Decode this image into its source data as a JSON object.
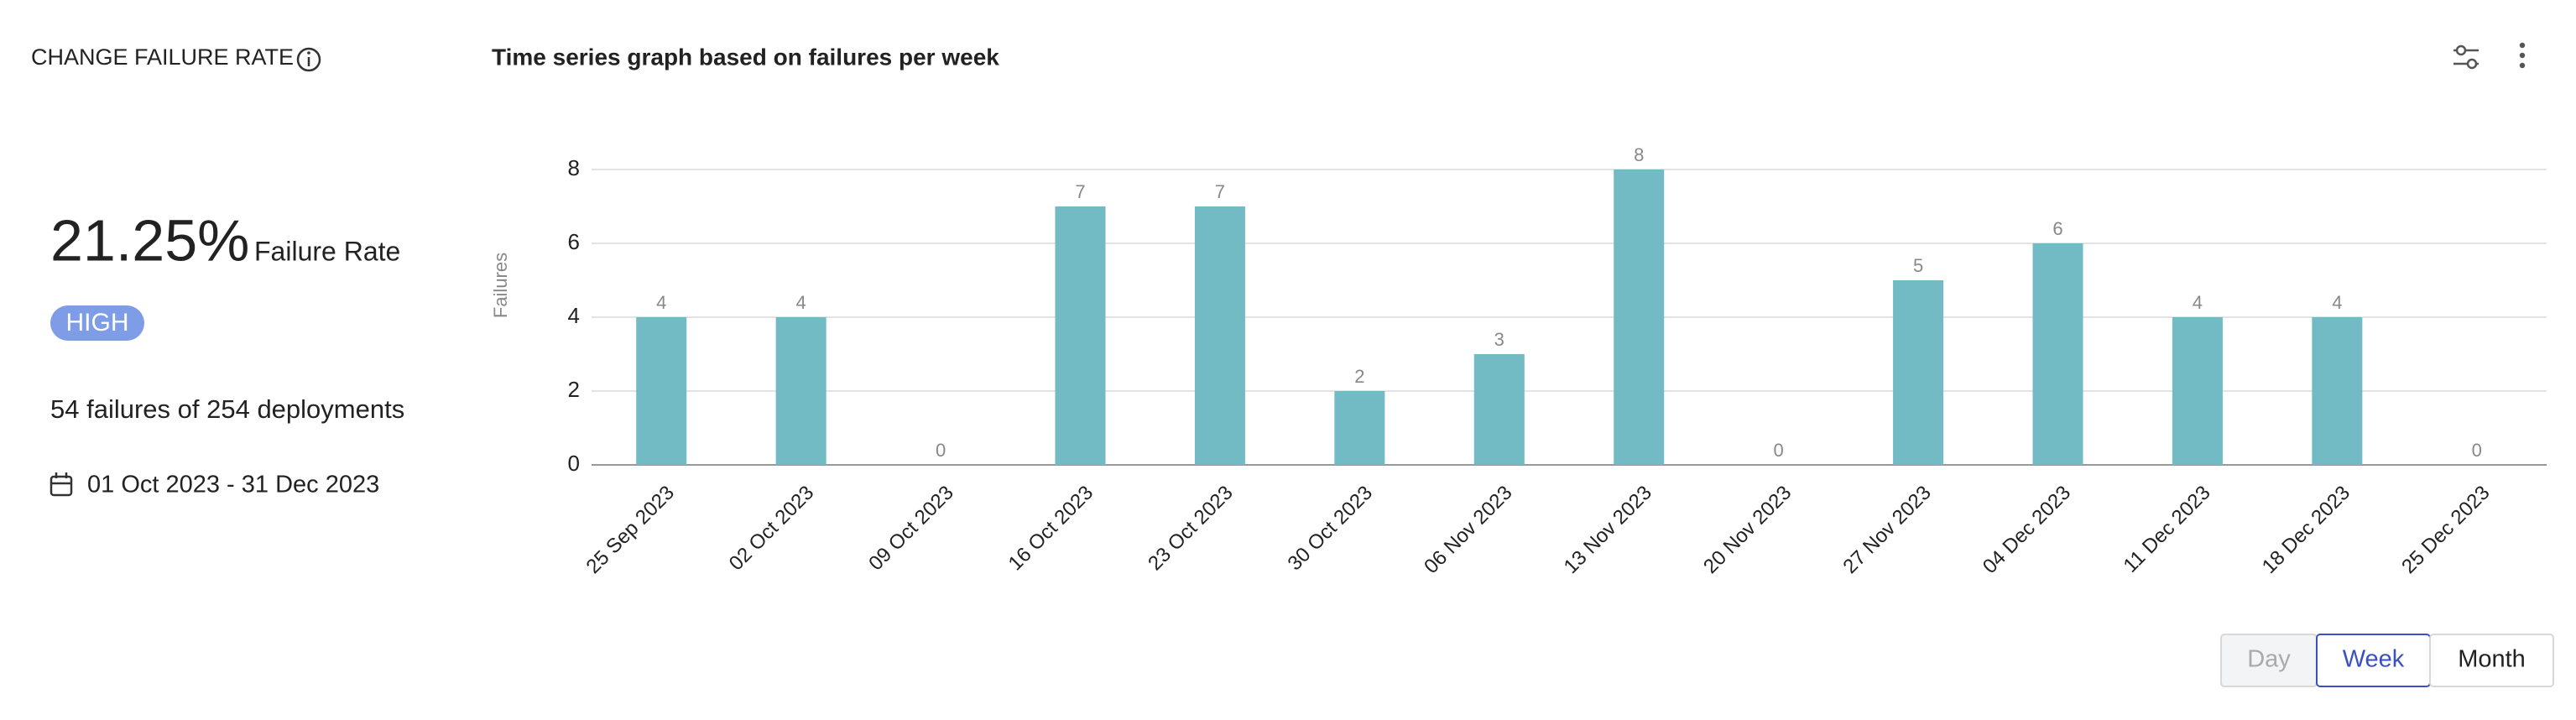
{
  "header": {
    "title": "CHANGE FAILURE RATE"
  },
  "summary": {
    "rate": "21.25%",
    "rate_label": "Failure Rate",
    "level": "HIGH",
    "failures_text": "54 failures of 254 deployments",
    "date_range": "01 Oct 2023 - 31 Dec 2023"
  },
  "chart_data": {
    "type": "bar",
    "title": "Time series graph based on failures per week",
    "y_label": "Failures",
    "categories": [
      "25 Sep 2023",
      "02 Oct 2023",
      "09 Oct 2023",
      "16 Oct 2023",
      "23 Oct 2023",
      "30 Oct 2023",
      "06 Nov 2023",
      "13 Nov 2023",
      "20 Nov 2023",
      "27 Nov 2023",
      "04 Dec 2023",
      "11 Dec 2023",
      "18 Dec 2023",
      "25 Dec 2023"
    ],
    "values": [
      4,
      4,
      0,
      7,
      7,
      2,
      3,
      8,
      0,
      5,
      6,
      4,
      4,
      0
    ],
    "color": "#72bac4",
    "ylim": [
      0,
      8
    ],
    "yticks": [
      0,
      2,
      4,
      6,
      8
    ],
    "grid": true
  },
  "controls": {
    "buttons": [
      "Day",
      "Week",
      "Month"
    ]
  }
}
